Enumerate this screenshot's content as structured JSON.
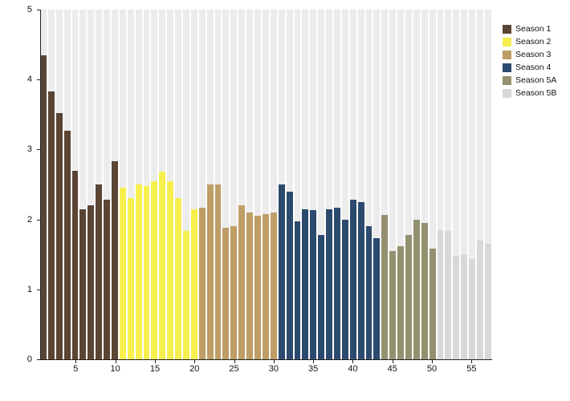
{
  "chart_data": {
    "type": "bar",
    "title": "",
    "xlabel": "",
    "ylabel": "",
    "ylim": [
      0,
      5
    ],
    "yticks": [
      0,
      1,
      2,
      3,
      4,
      5
    ],
    "xticks": [
      5,
      10,
      15,
      20,
      25,
      30,
      35,
      40,
      45,
      50,
      55
    ],
    "grid": false,
    "legend_position": "top-right",
    "background_stripe_color": "#ececec",
    "axis_color": "#222222",
    "series": [
      {
        "name": "Season 1",
        "color": "#5a4433",
        "values": [
          4.35,
          3.83,
          3.52,
          3.27,
          2.7,
          2.15,
          2.2,
          2.5,
          2.28,
          2.83
        ]
      },
      {
        "name": "Season 2",
        "color": "#f6ef4e",
        "values": [
          2.45,
          2.3,
          2.5,
          2.48,
          2.55,
          2.68,
          2.55,
          2.3,
          1.83,
          2.15
        ]
      },
      {
        "name": "Season 3",
        "color": "#bf9d66",
        "values": [
          2.17,
          2.5,
          2.5,
          1.88,
          1.9,
          2.2,
          2.1,
          2.05,
          2.08,
          2.1
        ]
      },
      {
        "name": "Season 4",
        "color": "#2c4a6e",
        "values": [
          2.5,
          2.4,
          1.97,
          2.15,
          2.13,
          1.78,
          2.15,
          2.17,
          2.0,
          2.28,
          2.25,
          1.9,
          1.73
        ]
      },
      {
        "name": "Season 5A",
        "color": "#93906f",
        "values": [
          2.07,
          1.55,
          1.62,
          1.78,
          2.0,
          1.95,
          1.58
        ]
      },
      {
        "name": "Season 5B",
        "color": "#d8d8d8",
        "values": [
          1.85,
          1.83,
          1.48,
          1.5,
          1.43,
          1.7,
          1.65
        ]
      }
    ],
    "legend": [
      {
        "label": "Season 1",
        "color": "#5a4433"
      },
      {
        "label": "Season 2",
        "color": "#f6ef4e"
      },
      {
        "label": "Season 3",
        "color": "#bf9d66"
      },
      {
        "label": "Season 4",
        "color": "#2c4a6e"
      },
      {
        "label": "Season 5A",
        "color": "#93906f"
      },
      {
        "label": "Season 5B",
        "color": "#d8d8d8"
      }
    ]
  }
}
